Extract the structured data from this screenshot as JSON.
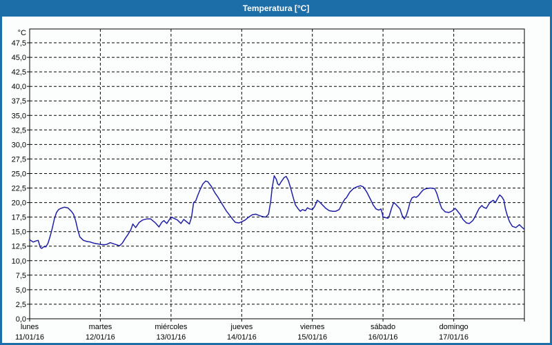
{
  "window": {
    "title": "Temperatura [°C]"
  },
  "colors": {
    "titlebar_bg": "#1b6ea8",
    "frame_border": "#1b6ea8",
    "plot_background": "#fcfdfd",
    "grid": "#000000",
    "axis": "#000000",
    "label_text": "#000000",
    "series_line": "#1e1ea6"
  },
  "chart_data": {
    "type": "line",
    "title": "Temperatura [°C]",
    "grid": {
      "style": "dashed",
      "horizontal_step_c": 2.5,
      "vertical_step_days": 1
    },
    "legend": "none",
    "y_axis": {
      "unit_label": "°C",
      "min": 0,
      "max": 47.5,
      "tick_step": 2.5,
      "decimal_separator": ",",
      "tick_labels": [
        "0,0",
        "2,5",
        "5,0",
        "7,5",
        "10,0",
        "12,5",
        "15,0",
        "17,5",
        "20,0",
        "22,5",
        "25,0",
        "27,5",
        "30,0",
        "32,5",
        "35,0",
        "37,5",
        "40,0",
        "42,5",
        "45,0",
        "47,5"
      ]
    },
    "x_axis": {
      "unit": "days",
      "span_days": 7,
      "days": [
        {
          "name": "lunes",
          "date": "11/01/16"
        },
        {
          "name": "martes",
          "date": "12/01/16"
        },
        {
          "name": "miércoles",
          "date": "13/01/16"
        },
        {
          "name": "jueves",
          "date": "14/01/16"
        },
        {
          "name": "viernes",
          "date": "15/01/16"
        },
        {
          "name": "sábado",
          "date": "16/01/16"
        },
        {
          "name": "domingo",
          "date": "17/01/16"
        }
      ]
    },
    "series": [
      {
        "name": "Temperatura",
        "color": "#1e1ea6",
        "points": [
          [
            0.0,
            13.6
          ],
          [
            0.05,
            13.2
          ],
          [
            0.09,
            13.4
          ],
          [
            0.12,
            13.5
          ],
          [
            0.15,
            12.3
          ],
          [
            0.17,
            12.1
          ],
          [
            0.2,
            12.4
          ],
          [
            0.23,
            12.4
          ],
          [
            0.26,
            13.0
          ],
          [
            0.29,
            14.2
          ],
          [
            0.32,
            15.6
          ],
          [
            0.35,
            17.2
          ],
          [
            0.38,
            18.3
          ],
          [
            0.41,
            18.8
          ],
          [
            0.44,
            19.0
          ],
          [
            0.49,
            19.2
          ],
          [
            0.54,
            19.1
          ],
          [
            0.59,
            18.5
          ],
          [
            0.62,
            18.0
          ],
          [
            0.65,
            16.9
          ],
          [
            0.68,
            15.3
          ],
          [
            0.71,
            14.1
          ],
          [
            0.76,
            13.5
          ],
          [
            0.81,
            13.3
          ],
          [
            0.86,
            13.2
          ],
          [
            0.91,
            13.0
          ],
          [
            0.96,
            12.9
          ],
          [
            1.0,
            12.8
          ],
          [
            1.05,
            12.75
          ],
          [
            1.09,
            12.8
          ],
          [
            1.14,
            13.1
          ],
          [
            1.19,
            12.9
          ],
          [
            1.24,
            12.7
          ],
          [
            1.27,
            12.55
          ],
          [
            1.31,
            13.0
          ],
          [
            1.35,
            13.8
          ],
          [
            1.39,
            14.5
          ],
          [
            1.43,
            15.3
          ],
          [
            1.46,
            16.3
          ],
          [
            1.5,
            15.7
          ],
          [
            1.55,
            16.6
          ],
          [
            1.6,
            17.0
          ],
          [
            1.66,
            17.2
          ],
          [
            1.71,
            17.2
          ],
          [
            1.78,
            16.5
          ],
          [
            1.83,
            15.8
          ],
          [
            1.87,
            16.6
          ],
          [
            1.9,
            16.9
          ],
          [
            1.94,
            16.4
          ],
          [
            2.0,
            17.5
          ],
          [
            2.04,
            17.3
          ],
          [
            2.09,
            17.0
          ],
          [
            2.14,
            16.4
          ],
          [
            2.18,
            17.1
          ],
          [
            2.21,
            16.8
          ],
          [
            2.26,
            16.3
          ],
          [
            2.29,
            17.5
          ],
          [
            2.32,
            20.0
          ],
          [
            2.35,
            20.3
          ],
          [
            2.38,
            21.3
          ],
          [
            2.41,
            22.2
          ],
          [
            2.45,
            23.2
          ],
          [
            2.49,
            23.7
          ],
          [
            2.52,
            23.6
          ],
          [
            2.57,
            22.8
          ],
          [
            2.62,
            21.7
          ],
          [
            2.66,
            21.0
          ],
          [
            2.71,
            20.0
          ],
          [
            2.78,
            18.6
          ],
          [
            2.83,
            17.8
          ],
          [
            2.88,
            17.0
          ],
          [
            2.91,
            16.6
          ],
          [
            2.96,
            16.5
          ],
          [
            3.0,
            16.7
          ],
          [
            3.05,
            17.0
          ],
          [
            3.1,
            17.5
          ],
          [
            3.15,
            17.9
          ],
          [
            3.2,
            18.0
          ],
          [
            3.24,
            17.8
          ],
          [
            3.29,
            17.6
          ],
          [
            3.34,
            17.5
          ],
          [
            3.38,
            18.0
          ],
          [
            3.41,
            20.2
          ],
          [
            3.43,
            22.4
          ],
          [
            3.46,
            24.6
          ],
          [
            3.49,
            24.0
          ],
          [
            3.51,
            23.2
          ],
          [
            3.53,
            23.0
          ],
          [
            3.56,
            23.6
          ],
          [
            3.6,
            24.3
          ],
          [
            3.63,
            24.5
          ],
          [
            3.66,
            23.8
          ],
          [
            3.69,
            22.6
          ],
          [
            3.73,
            20.8
          ],
          [
            3.76,
            19.6
          ],
          [
            3.8,
            18.9
          ],
          [
            3.83,
            18.5
          ],
          [
            3.86,
            18.8
          ],
          [
            3.9,
            18.6
          ],
          [
            3.93,
            19.1
          ],
          [
            3.96,
            18.9
          ],
          [
            4.0,
            18.8
          ],
          [
            4.03,
            19.3
          ],
          [
            4.07,
            20.4
          ],
          [
            4.11,
            20.0
          ],
          [
            4.15,
            19.5
          ],
          [
            4.19,
            19.0
          ],
          [
            4.24,
            18.6
          ],
          [
            4.29,
            18.5
          ],
          [
            4.33,
            18.5
          ],
          [
            4.38,
            18.8
          ],
          [
            4.42,
            19.8
          ],
          [
            4.46,
            20.6
          ],
          [
            4.48,
            20.8
          ],
          [
            4.53,
            21.8
          ],
          [
            4.58,
            22.4
          ],
          [
            4.63,
            22.7
          ],
          [
            4.68,
            22.9
          ],
          [
            4.72,
            22.7
          ],
          [
            4.77,
            21.8
          ],
          [
            4.82,
            20.6
          ],
          [
            4.86,
            19.6
          ],
          [
            4.9,
            18.9
          ],
          [
            4.94,
            18.7
          ],
          [
            4.97,
            18.9
          ],
          [
            4.99,
            18.1
          ],
          [
            5.0,
            17.5
          ],
          [
            5.04,
            17.4
          ],
          [
            5.07,
            17.3
          ],
          [
            5.09,
            17.8
          ],
          [
            5.12,
            19.0
          ],
          [
            5.15,
            20.0
          ],
          [
            5.18,
            19.7
          ],
          [
            5.21,
            19.3
          ],
          [
            5.24,
            18.9
          ],
          [
            5.27,
            17.8
          ],
          [
            5.3,
            17.2
          ],
          [
            5.33,
            17.8
          ],
          [
            5.36,
            19.0
          ],
          [
            5.38,
            20.0
          ],
          [
            5.41,
            20.8
          ],
          [
            5.44,
            21.0
          ],
          [
            5.47,
            20.9
          ],
          [
            5.5,
            21.2
          ],
          [
            5.54,
            21.8
          ],
          [
            5.57,
            22.2
          ],
          [
            5.61,
            22.4
          ],
          [
            5.67,
            22.5
          ],
          [
            5.73,
            22.4
          ],
          [
            5.76,
            21.6
          ],
          [
            5.8,
            20.0
          ],
          [
            5.83,
            19.0
          ],
          [
            5.88,
            18.4
          ],
          [
            5.93,
            18.3
          ],
          [
            5.97,
            18.5
          ],
          [
            6.0,
            18.8
          ],
          [
            6.02,
            19.0
          ],
          [
            6.05,
            18.6
          ],
          [
            6.1,
            17.8
          ],
          [
            6.13,
            17.1
          ],
          [
            6.18,
            16.5
          ],
          [
            6.22,
            16.4
          ],
          [
            6.27,
            16.9
          ],
          [
            6.3,
            17.5
          ],
          [
            6.33,
            18.3
          ],
          [
            6.36,
            19.0
          ],
          [
            6.4,
            19.5
          ],
          [
            6.42,
            19.2
          ],
          [
            6.46,
            19.0
          ],
          [
            6.51,
            20.0
          ],
          [
            6.56,
            20.4
          ],
          [
            6.59,
            20.0
          ],
          [
            6.62,
            20.7
          ],
          [
            6.65,
            21.3
          ],
          [
            6.68,
            21.0
          ],
          [
            6.71,
            20.4
          ],
          [
            6.73,
            19.0
          ],
          [
            6.76,
            17.7
          ],
          [
            6.79,
            16.7
          ],
          [
            6.83,
            15.9
          ],
          [
            6.88,
            15.7
          ],
          [
            6.93,
            16.2
          ],
          [
            6.96,
            15.8
          ],
          [
            7.0,
            15.4
          ]
        ]
      }
    ]
  }
}
